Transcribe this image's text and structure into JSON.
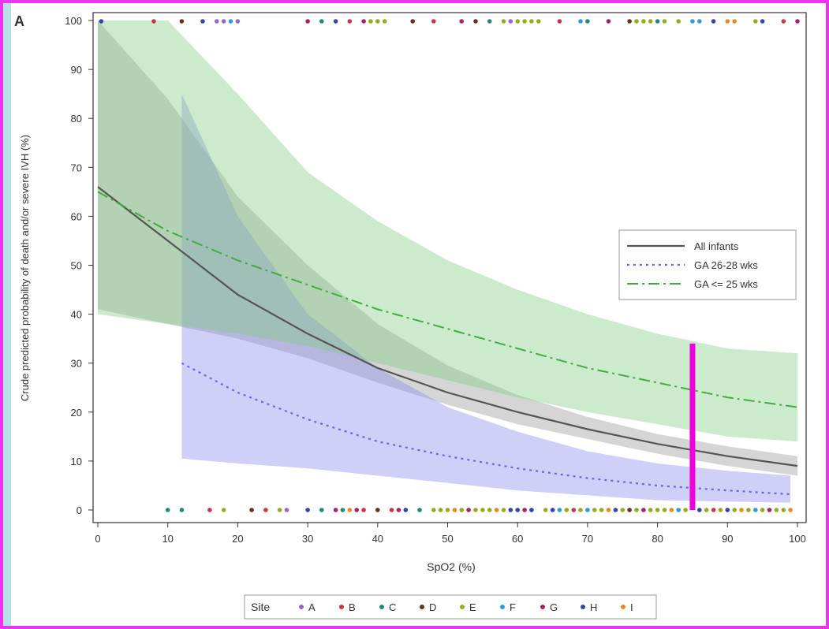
{
  "panel_label": "A",
  "colors": {
    "frame": "#ee33ee",
    "all_infants_line": "#555555",
    "all_infants_band": "#b3b3b3",
    "ga2628_line": "#6666ee",
    "ga2628_band": "#8888ee",
    "ga25_line": "#44aa44",
    "ga25_band": "#7fcc7f",
    "threshold_marker": "#ee00dd"
  },
  "chart_data": {
    "type": "line",
    "xlabel": "SpO2 (%)",
    "ylabel": "Crude predicted probability of death and/or severe IVH (%)",
    "xlim": [
      0,
      100
    ],
    "ylim": [
      0,
      100
    ],
    "x_ticks": [
      "0",
      "10",
      "20",
      "30",
      "40",
      "50",
      "60",
      "70",
      "80",
      "90",
      "100"
    ],
    "y_ticks": [
      "0",
      "10",
      "20",
      "30",
      "40",
      "50",
      "60",
      "70",
      "80",
      "90",
      "100"
    ],
    "grid": false,
    "legend_position": "right",
    "legend": [
      "All infants",
      "GA 26-28 wks",
      "GA <= 25 wks"
    ],
    "series": [
      {
        "name": "All infants",
        "style": "solid",
        "x": [
          0,
          10,
          20,
          30,
          40,
          50,
          60,
          70,
          80,
          90,
          100
        ],
        "y": [
          66,
          55,
          44,
          36,
          29,
          24,
          20,
          16.5,
          13.5,
          11,
          9
        ],
        "ci_lower": [
          41,
          38,
          35,
          31,
          26,
          21.5,
          17.5,
          14.5,
          11.5,
          9,
          7
        ],
        "ci_upper": [
          100,
          84,
          64,
          50,
          38,
          29.5,
          23.5,
          19,
          15.5,
          13,
          11
        ]
      },
      {
        "name": "GA 26-28 wks",
        "style": "dotted",
        "x": [
          12,
          20,
          30,
          40,
          50,
          60,
          70,
          80,
          90,
          99
        ],
        "y": [
          30,
          24,
          18.5,
          14,
          11,
          8.5,
          6.5,
          5,
          4,
          3.2
        ],
        "ci_lower": [
          10.5,
          9.5,
          8.5,
          7,
          5.5,
          4,
          3,
          2,
          1.7,
          1.5
        ],
        "ci_upper": [
          85,
          60,
          40,
          29,
          21,
          16,
          12,
          9.5,
          8,
          7
        ]
      },
      {
        "name": "GA <= 25 wks",
        "style": "dashdot",
        "x": [
          0,
          10,
          20,
          30,
          40,
          50,
          60,
          70,
          80,
          90,
          100
        ],
        "y": [
          65,
          57,
          51,
          46,
          41,
          37,
          33,
          29,
          26,
          23,
          21
        ],
        "ci_lower": [
          40,
          38,
          36,
          33.5,
          30,
          26.5,
          23,
          20,
          17.5,
          15,
          14
        ],
        "ci_upper": [
          100,
          100,
          85,
          69,
          59,
          51,
          45,
          40,
          36,
          33,
          32
        ]
      }
    ],
    "threshold_marker": {
      "x": 85,
      "y_min": 0,
      "y_max": 34
    },
    "rug_points": {
      "top": [
        {
          "x": 0.5,
          "site": "H"
        },
        {
          "x": 8,
          "site": "B"
        },
        {
          "x": 12,
          "site": "D"
        },
        {
          "x": 15,
          "site": "H"
        },
        {
          "x": 17,
          "site": "A"
        },
        {
          "x": 18,
          "site": "A"
        },
        {
          "x": 19,
          "site": "F"
        },
        {
          "x": 20,
          "site": "A"
        },
        {
          "x": 30,
          "site": "G"
        },
        {
          "x": 32,
          "site": "C"
        },
        {
          "x": 34,
          "site": "H"
        },
        {
          "x": 36,
          "site": "B"
        },
        {
          "x": 38,
          "site": "G"
        },
        {
          "x": 39,
          "site": "E"
        },
        {
          "x": 40,
          "site": "E"
        },
        {
          "x": 41,
          "site": "E"
        },
        {
          "x": 45,
          "site": "D"
        },
        {
          "x": 48,
          "site": "B"
        },
        {
          "x": 52,
          "site": "G"
        },
        {
          "x": 54,
          "site": "D"
        },
        {
          "x": 56,
          "site": "C"
        },
        {
          "x": 58,
          "site": "E"
        },
        {
          "x": 59,
          "site": "A"
        },
        {
          "x": 60,
          "site": "E"
        },
        {
          "x": 61,
          "site": "E"
        },
        {
          "x": 62,
          "site": "E"
        },
        {
          "x": 63,
          "site": "E"
        },
        {
          "x": 66,
          "site": "B"
        },
        {
          "x": 69,
          "site": "F"
        },
        {
          "x": 70,
          "site": "C"
        },
        {
          "x": 73,
          "site": "G"
        },
        {
          "x": 76,
          "site": "D"
        },
        {
          "x": 77,
          "site": "E"
        },
        {
          "x": 78,
          "site": "E"
        },
        {
          "x": 79,
          "site": "E"
        },
        {
          "x": 80,
          "site": "C"
        },
        {
          "x": 81,
          "site": "E"
        },
        {
          "x": 83,
          "site": "E"
        },
        {
          "x": 85,
          "site": "F"
        },
        {
          "x": 86,
          "site": "F"
        },
        {
          "x": 88,
          "site": "H"
        },
        {
          "x": 90,
          "site": "I"
        },
        {
          "x": 91,
          "site": "I"
        },
        {
          "x": 94,
          "site": "E"
        },
        {
          "x": 95,
          "site": "H"
        },
        {
          "x": 98,
          "site": "B"
        },
        {
          "x": 100,
          "site": "G"
        }
      ],
      "bottom": [
        {
          "x": 10,
          "site": "C"
        },
        {
          "x": 12,
          "site": "C"
        },
        {
          "x": 16,
          "site": "B"
        },
        {
          "x": 18,
          "site": "E"
        },
        {
          "x": 22,
          "site": "D"
        },
        {
          "x": 24,
          "site": "B"
        },
        {
          "x": 26,
          "site": "E"
        },
        {
          "x": 27,
          "site": "A"
        },
        {
          "x": 30,
          "site": "H"
        },
        {
          "x": 32,
          "site": "C"
        },
        {
          "x": 34,
          "site": "G"
        },
        {
          "x": 35,
          "site": "C"
        },
        {
          "x": 36,
          "site": "I"
        },
        {
          "x": 37,
          "site": "G"
        },
        {
          "x": 38,
          "site": "B"
        },
        {
          "x": 40,
          "site": "D"
        },
        {
          "x": 42,
          "site": "B"
        },
        {
          "x": 43,
          "site": "G"
        },
        {
          "x": 44,
          "site": "H"
        },
        {
          "x": 46,
          "site": "C"
        },
        {
          "x": 48,
          "site": "E"
        },
        {
          "x": 49,
          "site": "E"
        },
        {
          "x": 50,
          "site": "E"
        },
        {
          "x": 51,
          "site": "I"
        },
        {
          "x": 52,
          "site": "E"
        },
        {
          "x": 53,
          "site": "G"
        },
        {
          "x": 54,
          "site": "E"
        },
        {
          "x": 55,
          "site": "E"
        },
        {
          "x": 56,
          "site": "E"
        },
        {
          "x": 57,
          "site": "I"
        },
        {
          "x": 58,
          "site": "E"
        },
        {
          "x": 59,
          "site": "H"
        },
        {
          "x": 60,
          "site": "H"
        },
        {
          "x": 61,
          "site": "G"
        },
        {
          "x": 62,
          "site": "H"
        },
        {
          "x": 64,
          "site": "E"
        },
        {
          "x": 65,
          "site": "H"
        },
        {
          "x": 66,
          "site": "F"
        },
        {
          "x": 67,
          "site": "E"
        },
        {
          "x": 68,
          "site": "B"
        },
        {
          "x": 69,
          "site": "E"
        },
        {
          "x": 70,
          "site": "F"
        },
        {
          "x": 71,
          "site": "E"
        },
        {
          "x": 72,
          "site": "E"
        },
        {
          "x": 73,
          "site": "I"
        },
        {
          "x": 74,
          "site": "H"
        },
        {
          "x": 75,
          "site": "E"
        },
        {
          "x": 76,
          "site": "D"
        },
        {
          "x": 77,
          "site": "E"
        },
        {
          "x": 78,
          "site": "G"
        },
        {
          "x": 79,
          "site": "E"
        },
        {
          "x": 80,
          "site": "E"
        },
        {
          "x": 81,
          "site": "E"
        },
        {
          "x": 82,
          "site": "I"
        },
        {
          "x": 83,
          "site": "F"
        },
        {
          "x": 84,
          "site": "E"
        },
        {
          "x": 86,
          "site": "H"
        },
        {
          "x": 87,
          "site": "E"
        },
        {
          "x": 88,
          "site": "B"
        },
        {
          "x": 89,
          "site": "E"
        },
        {
          "x": 90,
          "site": "H"
        },
        {
          "x": 91,
          "site": "E"
        },
        {
          "x": 92,
          "site": "I"
        },
        {
          "x": 93,
          "site": "E"
        },
        {
          "x": 94,
          "site": "F"
        },
        {
          "x": 95,
          "site": "E"
        },
        {
          "x": 96,
          "site": "G"
        },
        {
          "x": 97,
          "site": "E"
        },
        {
          "x": 98,
          "site": "E"
        },
        {
          "x": 99,
          "site": "I"
        }
      ]
    },
    "site_legend": {
      "title": "Site",
      "items": [
        {
          "label": "A",
          "color": "#9966cc"
        },
        {
          "label": "B",
          "color": "#cc3344"
        },
        {
          "label": "C",
          "color": "#228877"
        },
        {
          "label": "D",
          "color": "#663322"
        },
        {
          "label": "E",
          "color": "#99aa22"
        },
        {
          "label": "F",
          "color": "#3399dd"
        },
        {
          "label": "G",
          "color": "#aa2266"
        },
        {
          "label": "H",
          "color": "#3344aa"
        },
        {
          "label": "I",
          "color": "#ee8822"
        }
      ]
    }
  }
}
